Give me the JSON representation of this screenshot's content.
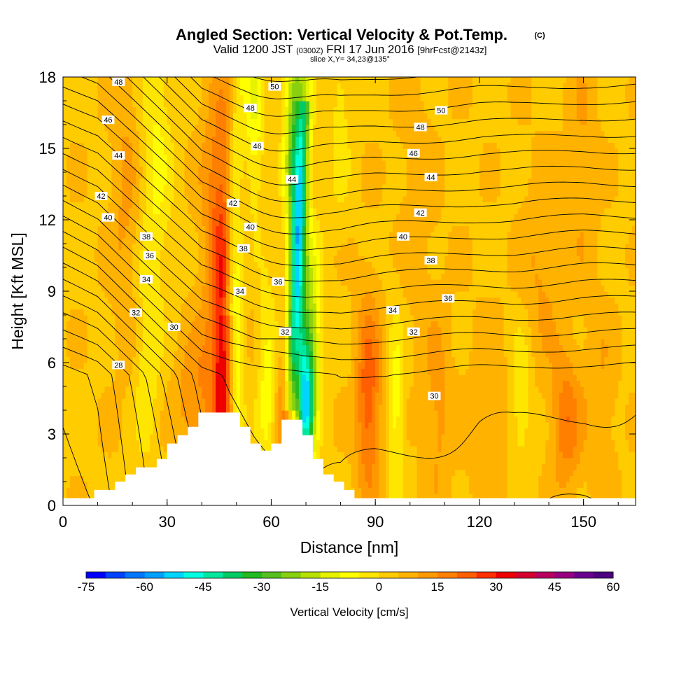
{
  "chart_data": {
    "type": "heatmap",
    "title": "Angled Section: Vertical Velocity & Pot.Temp.",
    "title_unit": "(C)",
    "subtitle": {
      "prefix": "Valid 1200 JST",
      "zulu": "(0300Z)",
      "date": "FRI 17 Jun 2016",
      "forecast": "[9hrFcst@2143z]"
    },
    "slice_label": "slice X,Y= 34,23@135°",
    "xlabel": "Distance [nm]",
    "ylabel": "Height [Kft MSL]",
    "xlim": [
      0,
      165
    ],
    "ylim": [
      0,
      18
    ],
    "x_ticks": [
      "0",
      "30",
      "60",
      "90",
      "120",
      "150"
    ],
    "x_tick_values": [
      0,
      30,
      60,
      90,
      120,
      150
    ],
    "y_ticks": [
      "0",
      "3",
      "6",
      "9",
      "12",
      "15",
      "18"
    ],
    "y_tick_values": [
      0,
      3,
      6,
      9,
      12,
      15,
      18
    ],
    "colorbar": {
      "title": "Vertical Velocity [cm/s]",
      "min": -75,
      "max": 60,
      "step": 5,
      "tick_labels": [
        "-75",
        "-60",
        "-45",
        "-30",
        "-15",
        "0",
        "15",
        "30",
        "45",
        "60"
      ],
      "tick_values": [
        -75,
        -60,
        -45,
        -30,
        -15,
        0,
        15,
        30,
        45,
        60
      ],
      "colors": [
        "#0000ff",
        "#0044ff",
        "#0077ff",
        "#00a0ff",
        "#00d5ff",
        "#00ffe0",
        "#00e8a0",
        "#00cc66",
        "#22bb22",
        "#55c020",
        "#88d010",
        "#b8e000",
        "#e6f200",
        "#ffff00",
        "#ffe600",
        "#ffcc00",
        "#ffb300",
        "#ff9900",
        "#ff7f00",
        "#ff5f00",
        "#ff3000",
        "#ee0000",
        "#d60030",
        "#b80060",
        "#990080",
        "#6a0090",
        "#4a0080"
      ]
    },
    "velocity_features": [
      {
        "x": 46,
        "z": 5.0,
        "sx": 2.0,
        "sz": 5.0,
        "w": 22
      },
      {
        "x": 46,
        "z": 12.0,
        "sx": 4.0,
        "sz": 5.0,
        "w": 10
      },
      {
        "x": 50,
        "z": 6.5,
        "sx": 1.5,
        "sz": 4.0,
        "w": -18
      },
      {
        "x": 44,
        "z": 10.0,
        "sx": 3.0,
        "sz": 7.0,
        "w": 5
      },
      {
        "x": 27,
        "z": 14.5,
        "sx": 3.0,
        "sz": 4.0,
        "w": -10
      },
      {
        "x": 24,
        "z": 6.0,
        "sx": 2.5,
        "sz": 3.0,
        "w": -8
      },
      {
        "x": 18,
        "z": 13.0,
        "sx": 3.0,
        "sz": 5.0,
        "w": 7
      },
      {
        "x": 38,
        "z": 4.5,
        "sx": 4.0,
        "sz": 2.0,
        "w": 10
      },
      {
        "x": 55,
        "z": 16.5,
        "sx": 2.0,
        "sz": 3.0,
        "w": -14
      },
      {
        "x": 59,
        "z": 5.0,
        "sx": 2.0,
        "sz": 3.0,
        "w": -12
      },
      {
        "x": 64,
        "z": 4.0,
        "sx": 2.0,
        "sz": 2.0,
        "w": 15
      },
      {
        "x": 70,
        "z": 4.2,
        "sx": 1.5,
        "sz": 2.0,
        "w": -42
      },
      {
        "x": 68,
        "z": 10.5,
        "sx": 1.8,
        "sz": 6.0,
        "w": -28
      },
      {
        "x": 66,
        "z": 15.5,
        "sx": 1.8,
        "sz": 3.5,
        "w": -20
      },
      {
        "x": 72,
        "z": 7.0,
        "sx": 2.0,
        "sz": 3.0,
        "w": -20
      },
      {
        "x": 80,
        "z": 16.5,
        "sx": 2.0,
        "sz": 3.0,
        "w": -7
      },
      {
        "x": 88,
        "z": 4.5,
        "sx": 2.5,
        "sz": 3.0,
        "w": 20
      },
      {
        "x": 96,
        "z": 4.0,
        "sx": 1.5,
        "sz": 3.0,
        "w": -12
      },
      {
        "x": 108,
        "z": 4.0,
        "sx": 3.0,
        "sz": 3.0,
        "w": 8
      },
      {
        "x": 122,
        "z": 3.5,
        "sx": 4.0,
        "sz": 3.0,
        "w": 6
      },
      {
        "x": 132,
        "z": 4.5,
        "sx": 2.0,
        "sz": 2.0,
        "w": -10
      },
      {
        "x": 145,
        "z": 3.5,
        "sx": 3.0,
        "sz": 2.0,
        "w": 15
      },
      {
        "x": 155,
        "z": 4.0,
        "sx": 3.0,
        "sz": 3.0,
        "w": 6
      },
      {
        "x": 138,
        "z": 10.0,
        "sx": 4.0,
        "sz": 3.0,
        "w": 7
      },
      {
        "x": 150,
        "z": 14.5,
        "sx": 3.0,
        "sz": 4.0,
        "w": 6
      },
      {
        "x": 102,
        "z": 13.0,
        "sx": 4.0,
        "sz": 4.0,
        "w": 4
      }
    ],
    "velocity_background": 4,
    "terrain": [
      [
        0,
        0.3
      ],
      [
        9,
        0.3
      ],
      [
        9,
        0.65
      ],
      [
        15,
        0.65
      ],
      [
        15,
        1.0
      ],
      [
        18,
        1.0
      ],
      [
        18,
        1.3
      ],
      [
        21,
        1.3
      ],
      [
        21,
        1.6
      ],
      [
        27,
        1.6
      ],
      [
        27,
        1.95
      ],
      [
        30,
        1.95
      ],
      [
        30,
        2.6
      ],
      [
        33,
        2.6
      ],
      [
        33,
        2.95
      ],
      [
        36,
        2.95
      ],
      [
        36,
        3.3
      ],
      [
        39,
        3.3
      ],
      [
        39,
        3.9
      ],
      [
        51,
        3.9
      ],
      [
        51,
        3.3
      ],
      [
        54,
        3.3
      ],
      [
        54,
        2.6
      ],
      [
        57,
        2.6
      ],
      [
        57,
        2.3
      ],
      [
        60,
        2.3
      ],
      [
        60,
        2.6
      ],
      [
        63,
        2.6
      ],
      [
        63,
        3.6
      ],
      [
        69,
        3.6
      ],
      [
        69,
        2.95
      ],
      [
        72,
        2.95
      ],
      [
        72,
        1.95
      ],
      [
        75,
        1.95
      ],
      [
        75,
        1.3
      ],
      [
        78,
        1.3
      ],
      [
        78,
        1.0
      ],
      [
        81,
        1.0
      ],
      [
        81,
        0.65
      ],
      [
        84,
        0.65
      ],
      [
        84,
        0.3
      ],
      [
        165,
        0.3
      ]
    ],
    "theta_levels": [
      20,
      21,
      22,
      23,
      24,
      25,
      26,
      27,
      28,
      29,
      30,
      31,
      32,
      33,
      34,
      35,
      36,
      37,
      38,
      39,
      40,
      41,
      42,
      43,
      44,
      45,
      46,
      47,
      48,
      49,
      50,
      51,
      52
    ],
    "theta_surface": [
      {
        "x": 0,
        "theta": 21
      },
      {
        "x": 10,
        "theta": 22
      },
      {
        "x": 20,
        "theta": 24
      },
      {
        "x": 30,
        "theta": 26
      },
      {
        "x": 40,
        "theta": 28
      },
      {
        "x": 48,
        "theta": 28.6
      },
      {
        "x": 55,
        "theta": 29
      },
      {
        "x": 62,
        "theta": 29.3
      },
      {
        "x": 70,
        "theta": 29.6
      },
      {
        "x": 80,
        "theta": 29.7
      },
      {
        "x": 90,
        "theta": 29.5
      },
      {
        "x": 100,
        "theta": 29.4
      },
      {
        "x": 110,
        "theta": 29.3
      },
      {
        "x": 120,
        "theta": 29.2
      },
      {
        "x": 130,
        "theta": 29.2
      },
      {
        "x": 140,
        "theta": 29.1
      },
      {
        "x": 150,
        "theta": 29.0
      },
      {
        "x": 165,
        "theta": 29.0
      }
    ],
    "theta_rate_low": 1.45,
    "theta_rate_mid": 1.3,
    "theta_labels": [
      {
        "text": "48",
        "x": 16,
        "z": 17.8
      },
      {
        "text": "46",
        "x": 13,
        "z": 16.2
      },
      {
        "text": "44",
        "x": 16,
        "z": 14.7
      },
      {
        "text": "42",
        "x": 11,
        "z": 13.0
      },
      {
        "text": "40",
        "x": 13,
        "z": 12.1
      },
      {
        "text": "38",
        "x": 24,
        "z": 11.3
      },
      {
        "text": "36",
        "x": 25,
        "z": 10.5
      },
      {
        "text": "34",
        "x": 24,
        "z": 9.5
      },
      {
        "text": "32",
        "x": 21,
        "z": 8.1
      },
      {
        "text": "30",
        "x": 32,
        "z": 7.5
      },
      {
        "text": "28",
        "x": 16,
        "z": 5.9
      },
      {
        "text": "50",
        "x": 61,
        "z": 17.6
      },
      {
        "text": "48",
        "x": 54,
        "z": 16.7
      },
      {
        "text": "46",
        "x": 56,
        "z": 15.1
      },
      {
        "text": "44",
        "x": 66,
        "z": 13.7
      },
      {
        "text": "42",
        "x": 49,
        "z": 12.7
      },
      {
        "text": "40",
        "x": 54,
        "z": 11.7
      },
      {
        "text": "38",
        "x": 52,
        "z": 10.8
      },
      {
        "text": "36",
        "x": 62,
        "z": 9.4
      },
      {
        "text": "34",
        "x": 51,
        "z": 9.0
      },
      {
        "text": "32",
        "x": 64,
        "z": 7.3
      },
      {
        "text": "50",
        "x": 109,
        "z": 16.6
      },
      {
        "text": "48",
        "x": 103,
        "z": 15.9
      },
      {
        "text": "46",
        "x": 101,
        "z": 14.8
      },
      {
        "text": "44",
        "x": 106,
        "z": 13.8
      },
      {
        "text": "42",
        "x": 103,
        "z": 12.3
      },
      {
        "text": "40",
        "x": 98,
        "z": 11.3
      },
      {
        "text": "38",
        "x": 106,
        "z": 10.3
      },
      {
        "text": "36",
        "x": 111,
        "z": 8.7
      },
      {
        "text": "34",
        "x": 95,
        "z": 8.2
      },
      {
        "text": "32",
        "x": 101,
        "z": 7.3
      },
      {
        "text": "30",
        "x": 107,
        "z": 4.6
      }
    ]
  }
}
